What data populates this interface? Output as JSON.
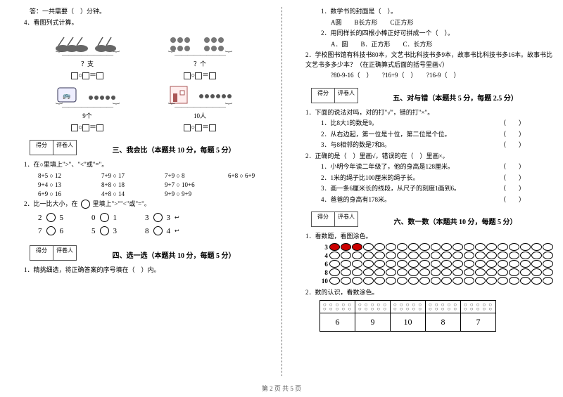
{
  "footer": "第 2 页 共 5 页",
  "left": {
    "ans_line": "答：一共需要（　）分钟。",
    "q4": "4．看图列式计算。",
    "fig1_caption": "？支",
    "fig2_caption": "？个",
    "fig3_caption": "9个",
    "fig4_caption": "10人",
    "op_eq": "＝",
    "score_label1": "得分",
    "score_label2": "评卷人",
    "sec3_title": "三、我会比（本题共 10 分，每题 5 分）",
    "sec3_q1": "1．在○里填上\">\"、\"<\"或\"=\"。",
    "cmp": [
      [
        "8+5 ○ 12",
        "7+9 ○ 17",
        "7+9 ○ 8",
        "6+8 ○ 6+9"
      ],
      [
        "9+4 ○ 13",
        "8+8 ○ 18",
        "9+7 ○ 10+6",
        ""
      ],
      [
        "6+9 ○ 16",
        "4+8 ○ 14",
        "9+9 ○ 9+9",
        ""
      ]
    ],
    "sec3_q2_a": "2．比一比大小，在",
    "sec3_q2_b": "里填上\">\"\"<\"或\"=\"。",
    "bigcmp": [
      [
        "2",
        "5",
        "0",
        "1",
        "3",
        "3"
      ],
      [
        "7",
        "6",
        "5",
        "3",
        "8",
        "4"
      ]
    ],
    "sec4_title": "四、选一选（本题共 10 分，每题 5 分）",
    "sec4_q1": "1．精挑细选，将正确答案的序号填在（　）内。"
  },
  "right": {
    "q1_1": "1．数学书的封面是（　）。",
    "q1_1_opts": "A圆　　B长方形　　C正方形",
    "q1_2": "2．用同样长的四根小棒正好可拼成一个（　）。",
    "q1_2_opts": "A．圆　　B．正方形　　C．长方形",
    "q2": "2．学校图书馆有科技书80本，文艺书比科技书多9本，故事书比科技书多16本。故事书比文艺书多多少本？（在正确算式后面的括号里画√）",
    "q2_line": "?80-9-16（　）　　?16+9（　）　　?16-9（　）",
    "score_label1": "得分",
    "score_label2": "评卷人",
    "sec5_title": "五、对与错（本题共 5 分，每题 2.5 分）",
    "sec5_q1": "1．下面的说法对吗，对的打\"√\"，错的打\"×\"。",
    "tf": [
      "1．比8大1的数是9。",
      "2．从右边起，第一位是十位，第二位是个位。",
      "3．与8相邻的数是7和8。"
    ],
    "sec5_q2": "2．正确的是（　）里画√，错误的在（　）里画×。",
    "tf2": [
      "1．小明今年读二年级了，他的身高是128厘米。",
      "2．1米的绳子比100厘米的绳子长。",
      "3．画一条6厘米长的线段，从尺子的刻度1画到6。",
      "4．爸爸的身高有178米。"
    ],
    "sec6_title": "六、数一数（本题共 10 分，每题 5 分）",
    "sec6_q1": "1．看数题，看图涂色。",
    "count_labels": [
      "3",
      "4",
      "6",
      "8",
      "10"
    ],
    "count_filled": [
      3,
      0,
      0,
      0,
      0
    ],
    "count_cols": 20,
    "sec6_q2": "2．数的认识，看数涂色。",
    "table_nums": [
      "6",
      "9",
      "10",
      "8",
      "7"
    ]
  }
}
